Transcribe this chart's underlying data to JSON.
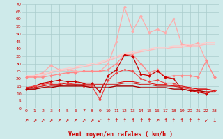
{
  "bg_color": "#ceeaea",
  "grid_color": "#aacccc",
  "xlabel": "Vent moyen/en rafales ( km/h )",
  "xlabel_color": "#cc0000",
  "ylabel_color": "#cc0000",
  "x": [
    0,
    1,
    2,
    3,
    4,
    5,
    6,
    7,
    8,
    9,
    10,
    11,
    12,
    13,
    14,
    15,
    16,
    17,
    18,
    19,
    20,
    21,
    22,
    23
  ],
  "series": [
    {
      "color": "#ffaaaa",
      "lw": 0.9,
      "marker": "D",
      "ms": 2.0,
      "data": [
        21,
        22,
        24,
        29,
        26,
        26,
        25,
        25,
        25,
        25,
        30,
        45,
        68,
        52,
        62,
        51,
        53,
        51,
        60,
        43,
        42,
        44,
        32,
        21
      ]
    },
    {
      "color": "#ffbbbb",
      "lw": 1.0,
      "marker": null,
      "ms": 0,
      "data": [
        21,
        21,
        22,
        24,
        25,
        26,
        27,
        28,
        29,
        30,
        32,
        34,
        36,
        37,
        38,
        39,
        40,
        40,
        41,
        41,
        42,
        42,
        43,
        43
      ]
    },
    {
      "color": "#ffcccc",
      "lw": 0.9,
      "marker": null,
      "ms": 0,
      "data": [
        22,
        22,
        23,
        25,
        26,
        27,
        28,
        29,
        30,
        31,
        33,
        35,
        37,
        38,
        39,
        40,
        41,
        41,
        42,
        42,
        43,
        43,
        44,
        44
      ]
    },
    {
      "color": "#ff8888",
      "lw": 0.9,
      "marker": "D",
      "ms": 2.0,
      "data": [
        21,
        21,
        21,
        22,
        23,
        24,
        24,
        25,
        25,
        25,
        26,
        30,
        36,
        36,
        30,
        24,
        26,
        21,
        22,
        22,
        22,
        21,
        32,
        21
      ]
    },
    {
      "color": "#cc0000",
      "lw": 0.9,
      "marker": "D",
      "ms": 2.0,
      "data": [
        13,
        15,
        17,
        18,
        19,
        18,
        18,
        17,
        17,
        11,
        22,
        26,
        36,
        35,
        23,
        22,
        25,
        21,
        20,
        13,
        12,
        11,
        10,
        12
      ]
    },
    {
      "color": "#ee4444",
      "lw": 0.9,
      "marker": "D",
      "ms": 1.8,
      "data": [
        14,
        15,
        16,
        17,
        17,
        17,
        16,
        15,
        15,
        6,
        19,
        24,
        26,
        25,
        20,
        18,
        19,
        17,
        17,
        14,
        13,
        12,
        11,
        12
      ]
    },
    {
      "color": "#cc2222",
      "lw": 0.8,
      "marker": null,
      "ms": 0,
      "data": [
        13,
        13,
        14,
        15,
        15,
        16,
        16,
        16,
        16,
        16,
        16,
        16,
        17,
        17,
        16,
        16,
        15,
        15,
        15,
        14,
        14,
        13,
        13,
        12
      ]
    },
    {
      "color": "#dd1111",
      "lw": 0.8,
      "marker": null,
      "ms": 0,
      "data": [
        14,
        14,
        15,
        16,
        16,
        17,
        17,
        17,
        17,
        17,
        17,
        17,
        18,
        18,
        17,
        17,
        16,
        16,
        15,
        15,
        14,
        13,
        13,
        12
      ]
    },
    {
      "color": "#aa0000",
      "lw": 1.0,
      "marker": null,
      "ms": 0,
      "data": [
        13,
        13,
        14,
        14,
        15,
        15,
        15,
        15,
        14,
        14,
        14,
        15,
        15,
        15,
        14,
        14,
        14,
        14,
        13,
        13,
        12,
        12,
        11,
        11
      ]
    }
  ],
  "ylim": [
    0,
    70
  ],
  "yticks": [
    0,
    5,
    10,
    15,
    20,
    25,
    30,
    35,
    40,
    45,
    50,
    55,
    60,
    65,
    70
  ],
  "xticks": [
    0,
    1,
    2,
    3,
    4,
    5,
    6,
    7,
    8,
    9,
    10,
    11,
    12,
    13,
    14,
    15,
    16,
    17,
    18,
    19,
    20,
    21,
    22,
    23
  ],
  "wind_arrows": [
    "↗",
    "↗",
    "↗",
    "↗",
    "↗",
    "↗",
    "↗",
    "↗",
    "↗",
    "↙",
    "↑",
    "↑",
    "↑",
    "↑",
    "↑",
    "↑",
    "↗",
    "↑",
    "↑",
    "↑",
    "↑",
    "↑",
    "↙",
    "↓"
  ]
}
